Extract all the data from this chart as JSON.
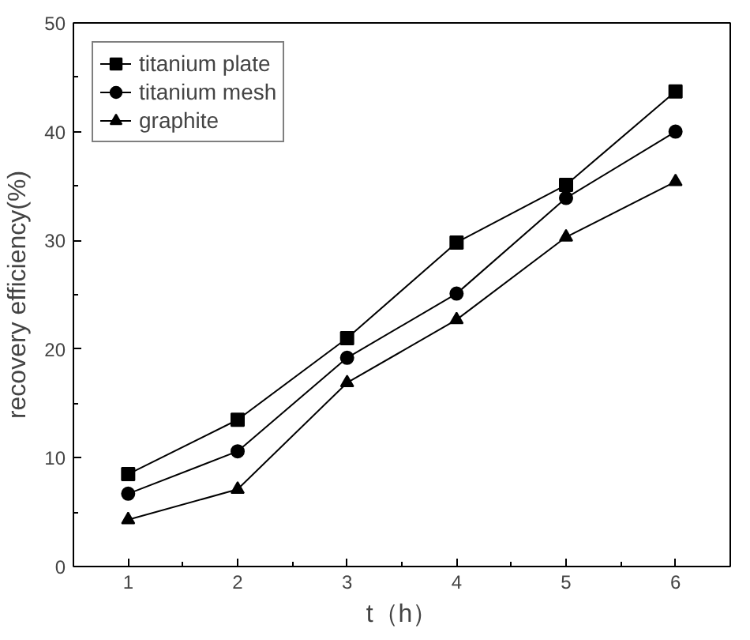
{
  "chart_data": {
    "type": "line",
    "xlabel": "t（h）",
    "ylabel": "recovery efficiency(%)",
    "x": [
      1,
      2,
      3,
      4,
      5,
      6
    ],
    "series": [
      {
        "name": "titanium plate",
        "color": "#000000",
        "marker": "square",
        "values": [
          8.5,
          13.5,
          21,
          29.8,
          35.1,
          43.7
        ]
      },
      {
        "name": "titanium mesh",
        "color": "#000000",
        "marker": "circle",
        "values": [
          6.7,
          10.6,
          19.2,
          25.1,
          33.9,
          40
        ]
      },
      {
        "name": "graphite",
        "color": "#000000",
        "marker": "triangle",
        "values": [
          4.3,
          7.1,
          16.9,
          22.7,
          30.3,
          35.4
        ]
      }
    ],
    "xlim": [
      0.5,
      6.5
    ],
    "ylim": [
      0,
      50
    ],
    "xticks": [
      1,
      2,
      3,
      4,
      5,
      6
    ],
    "yticks": [
      0,
      10,
      20,
      30,
      40,
      50
    ],
    "grid": false,
    "legend": "top left",
    "line_style": "solid"
  }
}
